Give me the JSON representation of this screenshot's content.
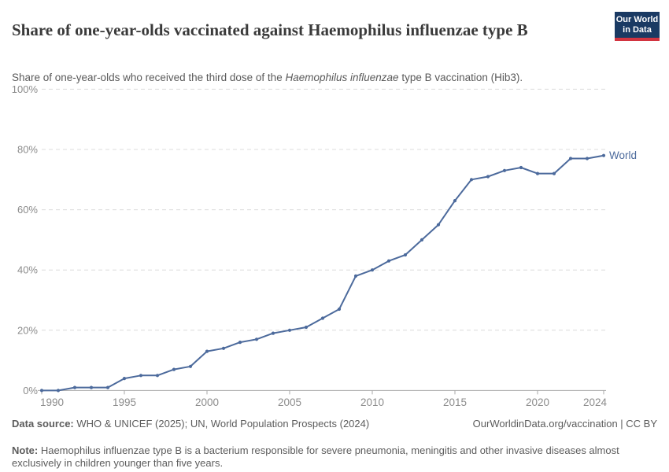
{
  "header": {
    "title": "Share of one-year-olds vaccinated against Haemophilus influenzae type B",
    "subtitle_prefix": "Share of one-year-olds who received the third dose of the ",
    "subtitle_italic": "Haemophilus influenzae",
    "subtitle_suffix": " type B vaccination (Hib3).",
    "logo": {
      "line1": "Our World",
      "line2": "in Data",
      "bg_color": "#1a3a63",
      "bar_color": "#d23440"
    }
  },
  "chart_data": {
    "type": "line",
    "title": "Share of one-year-olds vaccinated against Haemophilus influenzae type B",
    "xlabel": "",
    "ylabel": "",
    "xlim": [
      1990,
      2024
    ],
    "ylim": [
      0,
      100
    ],
    "x_ticks": [
      1990,
      1995,
      2000,
      2005,
      2010,
      2015,
      2020,
      2024
    ],
    "y_ticks": [
      0,
      20,
      40,
      60,
      80,
      100
    ],
    "y_tick_suffix": "%",
    "grid": "horizontal-dashed",
    "legend_position": "end-of-line-label",
    "line_color": "#4C6A9C",
    "axis_label_color": "#8c8c8c",
    "grid_color": "#dcdcdc",
    "axis_line_color": "#a8a8a8",
    "series": [
      {
        "name": "World",
        "x": [
          1990,
          1991,
          1992,
          1993,
          1994,
          1995,
          1996,
          1997,
          1998,
          1999,
          2000,
          2001,
          2002,
          2003,
          2004,
          2005,
          2006,
          2007,
          2008,
          2009,
          2010,
          2011,
          2012,
          2013,
          2014,
          2015,
          2016,
          2017,
          2018,
          2019,
          2020,
          2021,
          2022,
          2023,
          2024
        ],
        "values": [
          0,
          0,
          1,
          1,
          1,
          4,
          5,
          5,
          7,
          8,
          13,
          14,
          16,
          17,
          19,
          20,
          21,
          24,
          27,
          38,
          40,
          43,
          45,
          50,
          55,
          63,
          70,
          71,
          73,
          74,
          72,
          72,
          77,
          77,
          78
        ]
      }
    ]
  },
  "footer": {
    "data_source_label": "Data source:",
    "data_source_text": " WHO & UNICEF (2025); UN, World Population Prospects (2024)",
    "attribution": "OurWorldinData.org/vaccination | CC BY",
    "note_label": "Note:",
    "note_text": " Haemophilus influenzae type B is a bacterium responsible for severe pneumonia, meningitis and other invasive diseases almost exclusively in children younger than five years."
  }
}
